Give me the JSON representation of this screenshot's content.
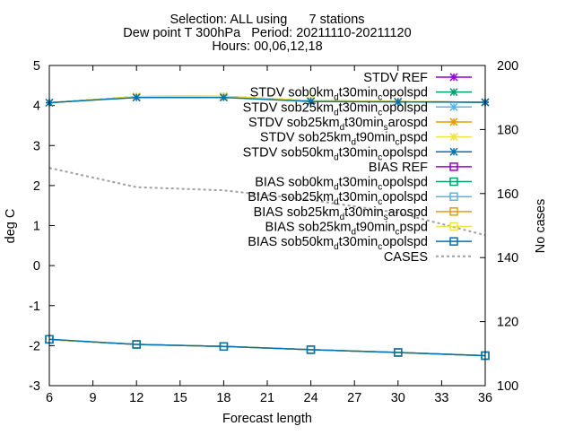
{
  "title_lines": [
    "Selection: ALL using      7 stations",
    "Dew point T 300hPa   Period: 20211110-20211120",
    "Hours: 00,06,12,18"
  ],
  "chart_data": {
    "type": "line",
    "xlabel": "Forecast length",
    "ylabel": "deg C",
    "y2label": "No cases",
    "xlim": [
      6,
      36
    ],
    "ylim": [
      -3,
      5
    ],
    "y2lim": [
      100,
      200
    ],
    "xticks": [
      6,
      9,
      12,
      15,
      18,
      21,
      24,
      27,
      30,
      33,
      36
    ],
    "yticks": [
      -3,
      -2,
      -1,
      0,
      1,
      2,
      3,
      4,
      5
    ],
    "y2ticks": [
      100,
      120,
      140,
      160,
      180,
      200
    ],
    "grid": false,
    "legend_position": "top-right",
    "x": [
      6,
      12,
      18,
      24,
      30,
      36
    ],
    "series": [
      {
        "name": "STDV REF",
        "axis": "y",
        "color": "#9400d3",
        "marker": "x",
        "values": [
          4.07,
          4.22,
          4.23,
          4.12,
          4.1,
          4.08
        ]
      },
      {
        "name": "STDV sob0km_d t30min_c opolspd",
        "axis": "y",
        "color": "#009e73",
        "marker": "x",
        "values": [
          4.07,
          4.22,
          4.23,
          4.12,
          4.1,
          4.08
        ]
      },
      {
        "name": "STDV sob25km_d t30min_c opolspd",
        "axis": "y",
        "color": "#56b4e9",
        "marker": "x",
        "values": [
          4.07,
          4.22,
          4.23,
          4.12,
          4.1,
          4.08
        ]
      },
      {
        "name": "STDV sob25km_d t30min_s arospd",
        "axis": "y",
        "color": "#e69f00",
        "marker": "x",
        "values": [
          4.07,
          4.22,
          4.23,
          4.12,
          4.1,
          4.08
        ]
      },
      {
        "name": "STDV sob25km_d t90min_c pspd",
        "axis": "y",
        "color": "#f0e442",
        "marker": "x",
        "values": [
          4.07,
          4.22,
          4.23,
          4.12,
          4.1,
          4.08
        ]
      },
      {
        "name": "STDV sob50km_d t30min_c opolspd",
        "axis": "y",
        "color": "#0072b2",
        "marker": "x",
        "values": [
          4.07,
          4.2,
          4.2,
          4.1,
          4.09,
          4.08
        ]
      },
      {
        "name": "BIAS REF",
        "axis": "y",
        "color": "#9400d3",
        "marker": "s",
        "values": [
          -1.85,
          -1.97,
          -2.02,
          -2.1,
          -2.17,
          -2.25
        ]
      },
      {
        "name": "BIAS sob0km_d t30min_c opolspd",
        "axis": "y",
        "color": "#009e73",
        "marker": "s",
        "values": [
          -1.85,
          -1.97,
          -2.02,
          -2.1,
          -2.17,
          -2.25
        ]
      },
      {
        "name": "BIAS sob25km_d t30min_c opolspd",
        "axis": "y",
        "color": "#56b4e9",
        "marker": "s",
        "values": [
          -1.85,
          -1.97,
          -2.02,
          -2.1,
          -2.17,
          -2.25
        ]
      },
      {
        "name": "BIAS sob25km_d t30min_s arospd",
        "axis": "y",
        "color": "#e69f00",
        "marker": "s",
        "values": [
          -1.85,
          -1.97,
          -2.02,
          -2.1,
          -2.17,
          -2.25
        ]
      },
      {
        "name": "BIAS sob25km_d t90min_c pspd",
        "axis": "y",
        "color": "#f0e442",
        "marker": "s",
        "values": [
          -1.85,
          -1.97,
          -2.02,
          -2.1,
          -2.17,
          -2.25
        ]
      },
      {
        "name": "BIAS sob50km_d t30min_c opolspd",
        "axis": "y",
        "color": "#0072b2",
        "marker": "s",
        "values": [
          -1.84,
          -1.97,
          -2.02,
          -2.1,
          -2.17,
          -2.25
        ]
      },
      {
        "name": "CASES",
        "axis": "y2",
        "color": "#a0a0a0",
        "marker": "none",
        "dashed": true,
        "values": [
          168,
          162,
          161,
          158,
          154,
          147
        ]
      }
    ],
    "legend": [
      {
        "series": 0,
        "parts": [
          {
            "t": "STDV REF"
          }
        ]
      },
      {
        "series": 1,
        "parts": [
          {
            "t": "STDV sob0km"
          },
          {
            "t": "d",
            "s": "sub"
          },
          {
            "t": "t30min"
          },
          {
            "t": "c",
            "s": "sub"
          },
          {
            "t": "opolspd"
          }
        ]
      },
      {
        "series": 2,
        "parts": [
          {
            "t": "STDV sob25km"
          },
          {
            "t": "d",
            "s": "sub"
          },
          {
            "t": "t30min"
          },
          {
            "t": "c",
            "s": "sub"
          },
          {
            "t": "opolspd"
          }
        ]
      },
      {
        "series": 3,
        "parts": [
          {
            "t": "STDV sob25km"
          },
          {
            "t": "d",
            "s": "sub"
          },
          {
            "t": "t30min"
          },
          {
            "t": "s",
            "s": "sub"
          },
          {
            "t": "arospd"
          }
        ]
      },
      {
        "series": 4,
        "parts": [
          {
            "t": "STDV sob25km"
          },
          {
            "t": "d",
            "s": "sub"
          },
          {
            "t": "t90min"
          },
          {
            "t": "c",
            "s": "sub"
          },
          {
            "t": "pspd"
          }
        ]
      },
      {
        "series": 5,
        "parts": [
          {
            "t": "STDV sob50km"
          },
          {
            "t": "d",
            "s": "sub"
          },
          {
            "t": "t30min"
          },
          {
            "t": "c",
            "s": "sub"
          },
          {
            "t": "opolspd"
          }
        ]
      },
      {
        "series": 6,
        "parts": [
          {
            "t": "BIAS REF"
          }
        ]
      },
      {
        "series": 7,
        "parts": [
          {
            "t": "BIAS sob0km"
          },
          {
            "t": "d",
            "s": "sub"
          },
          {
            "t": "t30min"
          },
          {
            "t": "c",
            "s": "sub"
          },
          {
            "t": "opolspd"
          }
        ]
      },
      {
        "series": 8,
        "parts": [
          {
            "t": "BIAS sob25km"
          },
          {
            "t": "d",
            "s": "sub"
          },
          {
            "t": "t30min"
          },
          {
            "t": "c",
            "s": "sub"
          },
          {
            "t": "opolspd"
          }
        ]
      },
      {
        "series": 9,
        "parts": [
          {
            "t": "BIAS sob25km"
          },
          {
            "t": "d",
            "s": "sub"
          },
          {
            "t": "t30min"
          },
          {
            "t": "s",
            "s": "sub"
          },
          {
            "t": "arospd"
          }
        ]
      },
      {
        "series": 10,
        "parts": [
          {
            "t": "BIAS sob25km"
          },
          {
            "t": "d",
            "s": "sub"
          },
          {
            "t": "t90min"
          },
          {
            "t": "c",
            "s": "sub"
          },
          {
            "t": "pspd"
          }
        ]
      },
      {
        "series": 11,
        "parts": [
          {
            "t": "BIAS sob50km"
          },
          {
            "t": "d",
            "s": "sub"
          },
          {
            "t": "t30min"
          },
          {
            "t": "c",
            "s": "sub"
          },
          {
            "t": "opolspd"
          }
        ]
      },
      {
        "series": 12,
        "parts": [
          {
            "t": "CASES"
          }
        ]
      }
    ]
  }
}
